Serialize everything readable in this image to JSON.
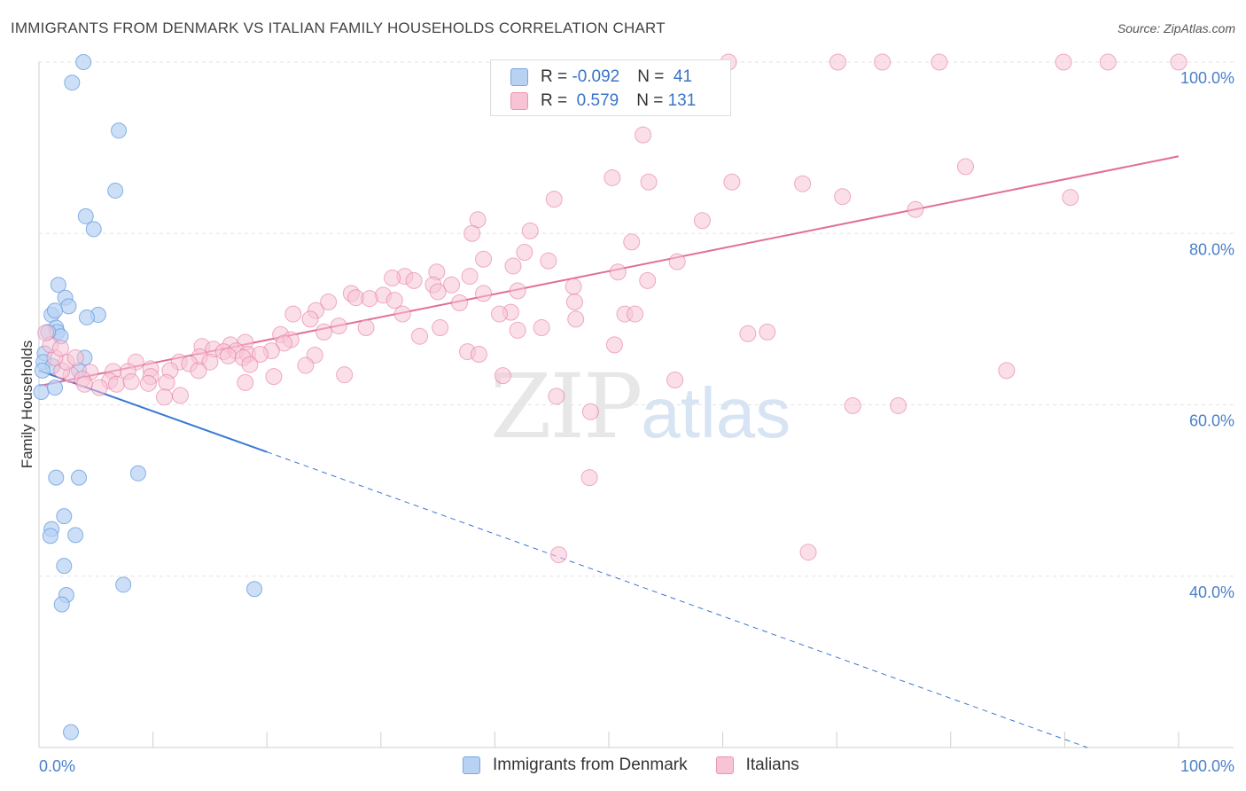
{
  "header": {
    "title": "IMMIGRANTS FROM DENMARK VS ITALIAN FAMILY HOUSEHOLDS CORRELATION CHART",
    "source": "Source: ZipAtlas.com"
  },
  "watermark": {
    "zip": "ZIP",
    "atlas": "atlas"
  },
  "legend": {
    "rows": [
      {
        "r_label": "R = ",
        "r_value": "-0.092",
        "n_label": "N = ",
        "n_value": " 41",
        "color": "#a9c8f0"
      },
      {
        "r_label": "R = ",
        "r_value": " 0.579",
        "n_label": "N = ",
        "n_value": "131",
        "color": "#f6b6ca"
      }
    ]
  },
  "bottom_legend": {
    "series1": "Immigrants from Denmark",
    "series2": "Italians"
  },
  "chart_data": {
    "type": "scatter",
    "title": "IMMIGRANTS FROM DENMARK VS ITALIAN FAMILY HOUSEHOLDS CORRELATION CHART",
    "xlabel": "",
    "ylabel": "Family Households",
    "xlim": [
      0,
      100
    ],
    "ylim": [
      20,
      100
    ],
    "x_tick_labels": [
      "0.0%",
      "100.0%"
    ],
    "y_ticks": [
      40,
      60,
      80,
      100
    ],
    "y_tick_labels": [
      "40.0%",
      "60.0%",
      "80.0%",
      "100.0%"
    ],
    "grid": true,
    "legend_position": "top-center",
    "series": [
      {
        "name": "Immigrants from Denmark",
        "color": "#6a9fe0",
        "fill": "#b8d2f3",
        "trend": {
          "x0": 0,
          "y0": 64,
          "x1": 20,
          "y1": 54.5,
          "dashed_to_x": 92,
          "dashed_to_y": 20
        },
        "points": [
          [
            3.9,
            100.0
          ],
          [
            2.9,
            97.6
          ],
          [
            7.0,
            92.0
          ],
          [
            6.7,
            85.0
          ],
          [
            4.1,
            82.0
          ],
          [
            4.8,
            80.5
          ],
          [
            1.7,
            74.0
          ],
          [
            2.3,
            72.5
          ],
          [
            2.6,
            71.5
          ],
          [
            1.1,
            70.5
          ],
          [
            1.4,
            71.0
          ],
          [
            5.2,
            70.5
          ],
          [
            4.2,
            70.2
          ],
          [
            1.5,
            69.0
          ],
          [
            1.6,
            68.5
          ],
          [
            1.9,
            68.0
          ],
          [
            0.8,
            68.5
          ],
          [
            0.5,
            66.0
          ],
          [
            0.4,
            65.0
          ],
          [
            1.2,
            64.5
          ],
          [
            4.0,
            65.5
          ],
          [
            3.5,
            64.0
          ],
          [
            0.3,
            64.0
          ],
          [
            0.2,
            61.5
          ],
          [
            1.4,
            62.0
          ],
          [
            1.5,
            51.5
          ],
          [
            3.5,
            51.5
          ],
          [
            8.7,
            52.0
          ],
          [
            2.2,
            47.0
          ],
          [
            1.1,
            45.5
          ],
          [
            1.0,
            44.7
          ],
          [
            3.2,
            44.8
          ],
          [
            2.2,
            41.2
          ],
          [
            7.4,
            39.0
          ],
          [
            18.9,
            38.5
          ],
          [
            2.4,
            37.8
          ],
          [
            2.0,
            36.7
          ],
          [
            2.8,
            21.8
          ]
        ]
      },
      {
        "name": "Italians",
        "color": "#e26d9a",
        "fill": "#f8c4d5",
        "trend": {
          "x0": 0,
          "y0": 62.2,
          "x1": 100,
          "y1": 89.0
        },
        "points": [
          [
            60.5,
            100.0
          ],
          [
            70.1,
            100.0
          ],
          [
            74.0,
            100.0
          ],
          [
            79.0,
            100.0
          ],
          [
            89.9,
            100.0
          ],
          [
            93.8,
            100.0
          ],
          [
            100.0,
            100.0
          ],
          [
            53.0,
            91.5
          ],
          [
            50.3,
            86.5
          ],
          [
            53.5,
            86.0
          ],
          [
            60.8,
            86.0
          ],
          [
            67.0,
            85.8
          ],
          [
            81.3,
            87.8
          ],
          [
            90.5,
            84.2
          ],
          [
            70.5,
            84.3
          ],
          [
            76.9,
            82.8
          ],
          [
            45.2,
            84.0
          ],
          [
            38.5,
            81.6
          ],
          [
            58.2,
            81.5
          ],
          [
            43.1,
            80.3
          ],
          [
            38.0,
            80.0
          ],
          [
            52.0,
            79.0
          ],
          [
            42.6,
            77.8
          ],
          [
            39.0,
            77.0
          ],
          [
            44.7,
            76.8
          ],
          [
            56.0,
            76.7
          ],
          [
            41.6,
            76.2
          ],
          [
            34.9,
            75.5
          ],
          [
            32.1,
            75.0
          ],
          [
            31.0,
            74.8
          ],
          [
            37.8,
            75.0
          ],
          [
            50.8,
            75.5
          ],
          [
            32.9,
            74.5
          ],
          [
            34.6,
            74.0
          ],
          [
            36.2,
            74.0
          ],
          [
            53.4,
            74.5
          ],
          [
            46.9,
            73.8
          ],
          [
            27.4,
            73.0
          ],
          [
            30.2,
            72.8
          ],
          [
            35.0,
            73.2
          ],
          [
            39.0,
            73.0
          ],
          [
            42.0,
            73.3
          ],
          [
            47.0,
            72.0
          ],
          [
            27.8,
            72.5
          ],
          [
            29.0,
            72.4
          ],
          [
            31.2,
            72.2
          ],
          [
            36.9,
            71.9
          ],
          [
            25.4,
            72.0
          ],
          [
            31.9,
            70.6
          ],
          [
            41.4,
            70.8
          ],
          [
            40.4,
            70.6
          ],
          [
            47.1,
            70.0
          ],
          [
            51.4,
            70.6
          ],
          [
            52.3,
            70.6
          ],
          [
            22.3,
            70.6
          ],
          [
            24.3,
            71.0
          ],
          [
            23.8,
            70.0
          ],
          [
            26.3,
            69.2
          ],
          [
            28.7,
            69.0
          ],
          [
            25.0,
            68.5
          ],
          [
            33.4,
            68.0
          ],
          [
            35.2,
            69.0
          ],
          [
            44.1,
            69.0
          ],
          [
            42.0,
            68.7
          ],
          [
            62.2,
            68.3
          ],
          [
            63.9,
            68.5
          ],
          [
            21.2,
            68.2
          ],
          [
            22.1,
            67.6
          ],
          [
            18.1,
            67.3
          ],
          [
            16.8,
            67.0
          ],
          [
            21.5,
            67.2
          ],
          [
            50.5,
            67.0
          ],
          [
            14.3,
            66.8
          ],
          [
            15.3,
            66.5
          ],
          [
            16.2,
            66.2
          ],
          [
            17.3,
            66.3
          ],
          [
            18.3,
            65.9
          ],
          [
            20.4,
            66.3
          ],
          [
            24.2,
            65.8
          ],
          [
            37.6,
            66.2
          ],
          [
            38.6,
            65.9
          ],
          [
            16.6,
            65.7
          ],
          [
            17.9,
            65.5
          ],
          [
            19.4,
            65.9
          ],
          [
            14.1,
            65.6
          ],
          [
            12.3,
            65.0
          ],
          [
            8.5,
            65.0
          ],
          [
            13.2,
            64.8
          ],
          [
            15.0,
            65.0
          ],
          [
            18.5,
            64.7
          ],
          [
            23.4,
            64.6
          ],
          [
            14.0,
            64.0
          ],
          [
            11.5,
            64.0
          ],
          [
            9.8,
            64.2
          ],
          [
            7.8,
            63.9
          ],
          [
            6.5,
            63.9
          ],
          [
            4.5,
            63.8
          ],
          [
            2.8,
            63.5
          ],
          [
            2.0,
            64.0
          ],
          [
            3.8,
            63.0
          ],
          [
            6.2,
            62.8
          ],
          [
            9.8,
            63.3
          ],
          [
            20.6,
            63.3
          ],
          [
            26.8,
            63.5
          ],
          [
            6.8,
            62.4
          ],
          [
            8.1,
            62.7
          ],
          [
            9.6,
            62.5
          ],
          [
            11.2,
            62.6
          ],
          [
            18.1,
            62.6
          ],
          [
            4.0,
            62.4
          ],
          [
            5.3,
            62.0
          ],
          [
            2.4,
            65.0
          ],
          [
            3.2,
            65.5
          ],
          [
            1.4,
            65.5
          ],
          [
            1.0,
            67.0
          ],
          [
            0.6,
            68.4
          ],
          [
            1.9,
            66.6
          ],
          [
            40.7,
            63.4
          ],
          [
            55.8,
            62.9
          ],
          [
            84.9,
            64.0
          ],
          [
            45.4,
            61.0
          ],
          [
            11.0,
            60.9
          ],
          [
            12.4,
            61.1
          ],
          [
            71.4,
            59.9
          ],
          [
            75.4,
            59.9
          ],
          [
            48.4,
            59.2
          ],
          [
            48.3,
            51.5
          ],
          [
            45.6,
            42.5
          ],
          [
            67.5,
            42.8
          ]
        ]
      }
    ]
  }
}
